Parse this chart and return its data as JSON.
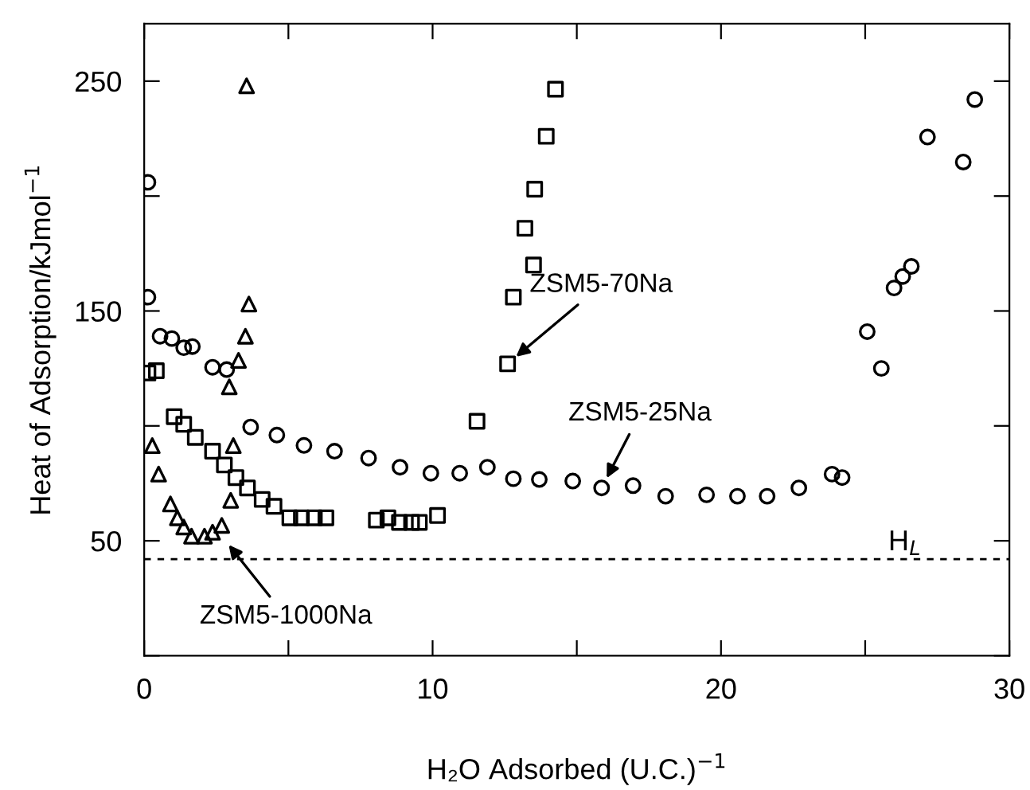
{
  "chart_data": {
    "type": "scatter",
    "xlabel": "H₂O Adsorbed (U.C.)$^{−1}$",
    "ylabel": "Heat of Adsorption/kJmol$^{−1}$",
    "xlim": [
      0,
      30
    ],
    "ylim": [
      0,
      275
    ],
    "xticks": [
      0,
      {
        "value": 5,
        "label": null
      },
      10,
      {
        "value": 15,
        "label": null
      },
      20,
      {
        "value": 25,
        "label": null
      },
      30
    ],
    "yticks": [
      {
        "value": 0,
        "label": null
      },
      50,
      {
        "value": 100,
        "label": null
      },
      150,
      {
        "value": 200,
        "label": null
      },
      250
    ],
    "grid": false,
    "legend": false,
    "series": [
      {
        "color": "#000000",
        "marker": "circle",
        "x": [
          0.13,
          0.13,
          0.55,
          0.96,
          1.37,
          1.67,
          2.37,
          2.86,
          3.69,
          4.6,
          5.54,
          6.6,
          7.78,
          8.87,
          9.94,
          10.94,
          11.9,
          12.8,
          13.7,
          14.86,
          15.86,
          16.95,
          18.08,
          19.5,
          20.57,
          21.6,
          22.7,
          23.85,
          24.2,
          25.07,
          25.56,
          26.0,
          26.3,
          26.6,
          27.16,
          28.4,
          28.8
        ],
        "values": [
          206,
          156,
          139,
          138,
          134,
          134.5,
          125.5,
          124.5,
          99.5,
          96,
          91.5,
          89,
          86,
          82,
          79.4,
          79.4,
          82,
          77,
          76.7,
          76,
          73,
          74,
          69.4,
          70,
          69.4,
          69.4,
          73,
          79,
          77.5,
          141,
          125,
          160,
          165,
          169.4,
          225.7,
          214.8,
          242
        ]
      },
      {
        "color": "#000000",
        "marker": "square",
        "x": [
          0.13,
          0.42,
          1.04,
          1.37,
          1.77,
          2.37,
          2.78,
          3.18,
          3.58,
          4.09,
          4.5,
          5.05,
          5.45,
          5.9,
          6.3,
          8.05,
          8.45,
          8.85,
          9.27,
          9.54,
          10.17,
          11.54,
          12.6,
          12.8,
          13.5,
          13.2,
          13.54,
          13.94,
          14.26
        ],
        "values": [
          123,
          124,
          104,
          100.7,
          95,
          89,
          83,
          77.5,
          73,
          68,
          65,
          60,
          60,
          60,
          60,
          59,
          60,
          58,
          58,
          58,
          61,
          102,
          127,
          156,
          170,
          186,
          203,
          226,
          246.5
        ]
      },
      {
        "color": "#000000",
        "marker": "triangle",
        "x": [
          0.28,
          0.5,
          0.91,
          1.15,
          1.37,
          1.64,
          2.09,
          2.37,
          2.69,
          3.0,
          3.09,
          2.95,
          3.27,
          3.51,
          3.63,
          3.55
        ],
        "values": [
          91.4,
          79,
          66,
          60,
          56,
          52,
          52,
          53.7,
          56.7,
          67.6,
          91.4,
          117,
          128.5,
          139,
          153,
          248
        ]
      }
    ],
    "ref_lines": [
      {
        "axis": "y",
        "value": 42,
        "label": "H$_{L}$",
        "color": "#000000",
        "line_style": "dashed"
      }
    ],
    "annotations": [
      {
        "text": "ZSM5-70Na",
        "x": 12.6,
        "y": 127
      },
      {
        "text": "ZSM5-25Na",
        "x": 15.86,
        "y": 73
      },
      {
        "text": "ZSM5-1000Na",
        "x": 2.69,
        "y": 52
      }
    ]
  }
}
